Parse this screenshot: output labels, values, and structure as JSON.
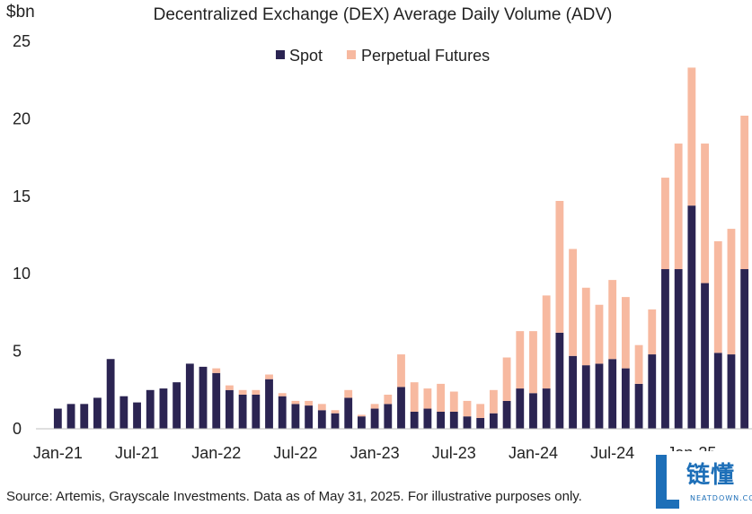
{
  "chart_data": {
    "type": "bar",
    "stacked": true,
    "title": "Decentralized Exchange (DEX) Average Daily Volume (ADV)",
    "ylabel": "$bn",
    "xlabel": "",
    "ylim": [
      0,
      25
    ],
    "yticks": [
      "0",
      "5",
      "10",
      "15",
      "20",
      "25"
    ],
    "xtick_labels": [
      "Jan-21",
      "Jul-21",
      "Jan-22",
      "Jul-22",
      "Jan-23",
      "Jul-23",
      "Jan-24",
      "Jul-24",
      "Jan-25"
    ],
    "xtick_every": 6,
    "grid": false,
    "legend_position": "top-center",
    "categories": [
      "Jan-21",
      "Feb-21",
      "Mar-21",
      "Apr-21",
      "May-21",
      "Jun-21",
      "Jul-21",
      "Aug-21",
      "Sep-21",
      "Oct-21",
      "Nov-21",
      "Dec-21",
      "Jan-22",
      "Feb-22",
      "Mar-22",
      "Apr-22",
      "May-22",
      "Jun-22",
      "Jul-22",
      "Aug-22",
      "Sep-22",
      "Oct-22",
      "Nov-22",
      "Dec-22",
      "Jan-23",
      "Feb-23",
      "Mar-23",
      "Apr-23",
      "May-23",
      "Jun-23",
      "Jul-23",
      "Aug-23",
      "Sep-23",
      "Oct-23",
      "Nov-23",
      "Dec-23",
      "Jan-24",
      "Feb-24",
      "Mar-24",
      "Apr-24",
      "May-24",
      "Jun-24",
      "Jul-24",
      "Aug-24",
      "Sep-24",
      "Oct-24",
      "Nov-24",
      "Dec-24",
      "Jan-25",
      "Feb-25",
      "Mar-25",
      "Apr-25",
      "May-25"
    ],
    "series": [
      {
        "name": "Spot",
        "color": "#2b2452",
        "values": [
          1.3,
          1.6,
          1.6,
          2.0,
          4.5,
          2.1,
          1.7,
          2.5,
          2.6,
          3.0,
          4.2,
          4.0,
          3.6,
          2.5,
          2.2,
          2.2,
          3.2,
          2.1,
          1.6,
          1.5,
          1.2,
          1.0,
          2.0,
          0.8,
          1.3,
          1.6,
          2.7,
          1.1,
          1.3,
          1.1,
          1.1,
          0.8,
          0.7,
          1.0,
          1.8,
          2.6,
          2.3,
          2.6,
          6.2,
          4.7,
          4.1,
          4.2,
          4.5,
          3.9,
          2.9,
          4.8,
          10.3,
          10.3,
          14.4,
          9.4,
          4.9,
          4.8,
          10.3
        ]
      },
      {
        "name": "Perpetual Futures",
        "color": "#f7b9a0",
        "values": [
          0,
          0,
          0,
          0,
          0,
          0,
          0,
          0,
          0,
          0,
          0,
          0,
          0.3,
          0.3,
          0.3,
          0.3,
          0.3,
          0.2,
          0.2,
          0.3,
          0.4,
          0.2,
          0.5,
          0.1,
          0.3,
          0.6,
          2.1,
          1.9,
          1.3,
          1.8,
          1.3,
          1.0,
          0.9,
          1.5,
          2.8,
          3.7,
          4.0,
          6.0,
          8.5,
          6.9,
          5.0,
          3.8,
          5.1,
          4.6,
          2.5,
          2.9,
          5.9,
          8.1,
          8.9,
          9.0,
          7.2,
          8.1,
          9.9
        ]
      }
    ]
  },
  "source_note": "Source: Artemis, Grayscale Investments. Data as of May 31, 2025. For illustrative purposes only.",
  "watermark": {
    "brand_cn": "链懂",
    "brand_en": "NEATDOWN.COM"
  }
}
